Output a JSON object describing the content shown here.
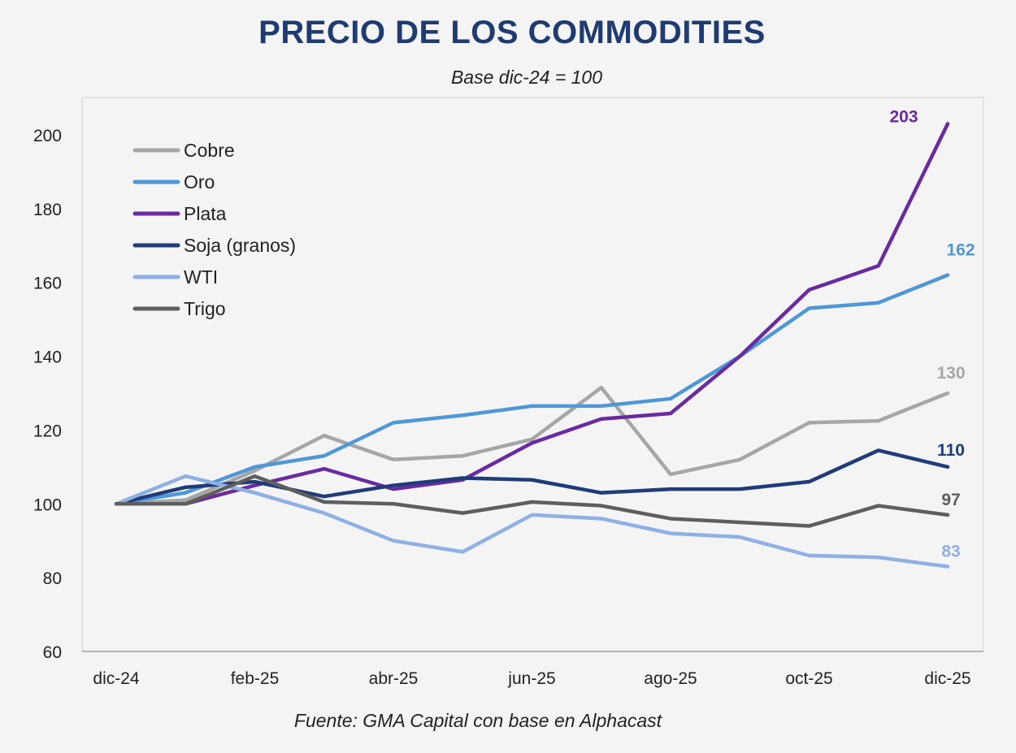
{
  "chart_data": {
    "type": "line",
    "title": "PRECIO DE LOS COMMODITIES",
    "subtitle": "Base dic-24 = 100",
    "source": "Fuente: GMA Capital con base en Alphacast",
    "x": [
      "dic-24",
      "ene-25",
      "feb-25",
      "mar-25",
      "abr-25",
      "may-25",
      "jun-25",
      "jul-25",
      "ago-25",
      "sep-25",
      "oct-25",
      "nov-25",
      "dic-25"
    ],
    "x_tick_labels": [
      "dic-24",
      "feb-25",
      "abr-25",
      "jun-25",
      "ago-25",
      "oct-25",
      "dic-25"
    ],
    "y_ticks": [
      60,
      80,
      100,
      120,
      140,
      160,
      180,
      200
    ],
    "ylim": [
      60,
      210
    ],
    "grid": false,
    "legend_placement": "top-left",
    "series": [
      {
        "name": "Cobre",
        "color": "#a6a6a6",
        "values": [
          100,
          101,
          109,
          118.5,
          112,
          113,
          117.5,
          131.5,
          108,
          112,
          122,
          122.5,
          130
        ],
        "end_label": "130"
      },
      {
        "name": "Oro",
        "color": "#4f97d6",
        "values": [
          100,
          103,
          110,
          113,
          122,
          124,
          126.5,
          126.5,
          128.5,
          140,
          153,
          154.5,
          162
        ],
        "end_label": "162"
      },
      {
        "name": "Plata",
        "color": "#6a2aa0",
        "values": [
          100,
          100,
          105,
          109.5,
          104,
          106.5,
          116.5,
          123,
          124.5,
          140,
          158,
          164.5,
          203
        ],
        "end_label": "203"
      },
      {
        "name": "Soja (granos)",
        "color": "#1f3c78",
        "values": [
          100,
          104.5,
          106,
          102,
          105,
          107,
          106.5,
          103,
          104,
          104,
          106,
          114.5,
          110
        ],
        "end_label": "110"
      },
      {
        "name": "WTI",
        "color": "#8fb0e3",
        "values": [
          100,
          107.5,
          103,
          97.5,
          90,
          87,
          97,
          96,
          92,
          91,
          86,
          85.5,
          83
        ],
        "end_label": "83"
      },
      {
        "name": "Trigo",
        "color": "#5e5e5e",
        "values": [
          100,
          100,
          107.5,
          100.5,
          100,
          97.5,
          100.5,
          99.5,
          96,
          95,
          94,
          99.5,
          97
        ],
        "end_label": "97"
      }
    ]
  }
}
